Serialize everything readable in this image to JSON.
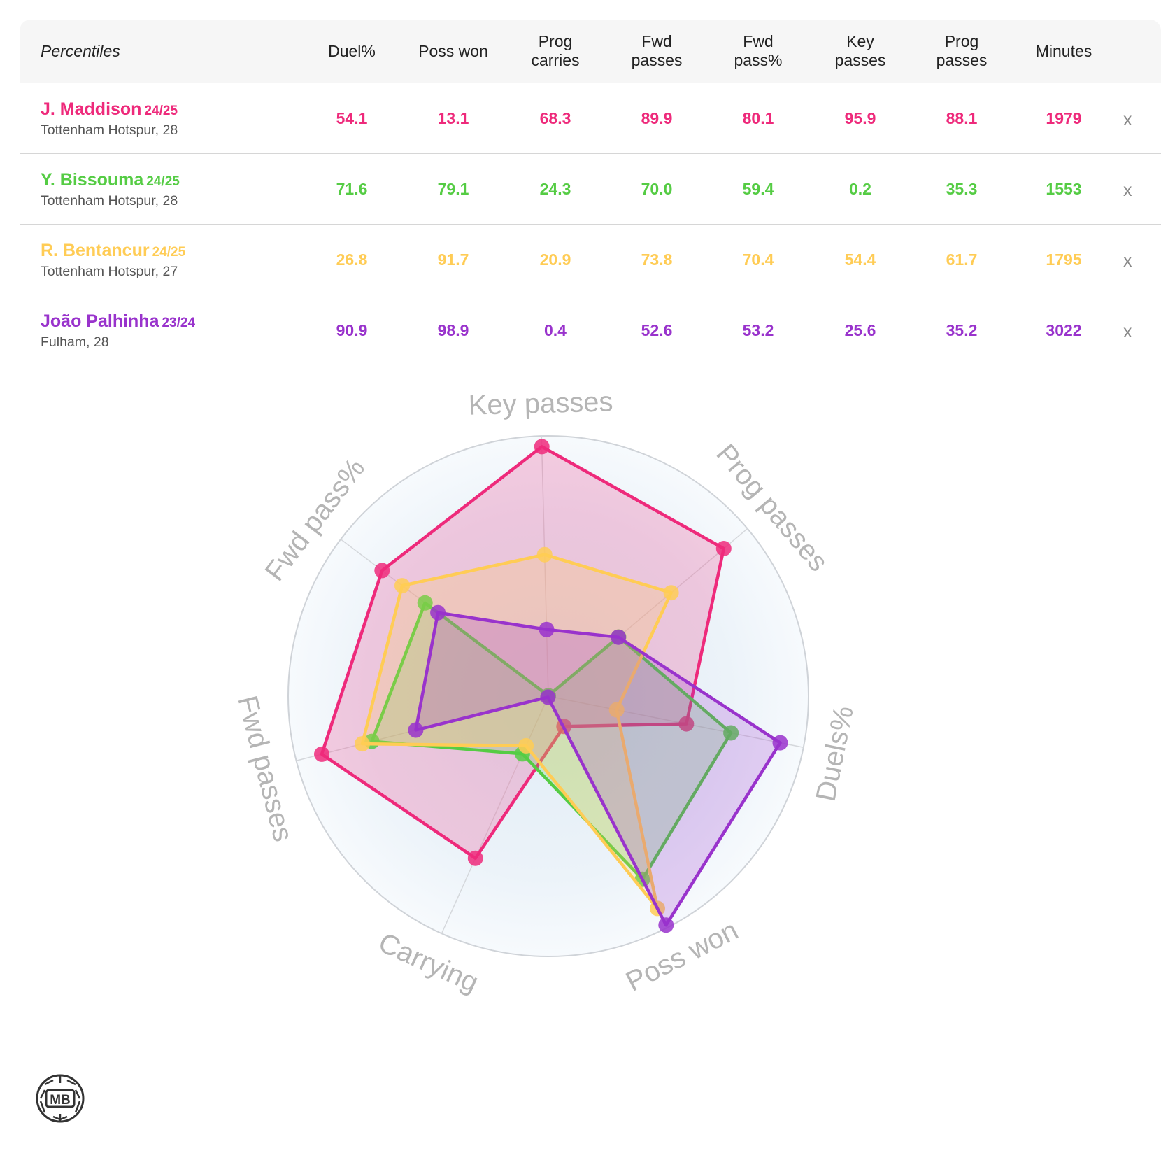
{
  "table": {
    "header_label": "Percentiles",
    "columns": [
      "Duel%",
      "Poss won",
      "Prog\ncarries",
      "Fwd\npasses",
      "Fwd\npass%",
      "Key\npasses",
      "Prog\npasses",
      "Minutes"
    ],
    "remove_label": "x"
  },
  "players": [
    {
      "name": "J. Maddison",
      "season": "24/25",
      "team_age": "Tottenham Hotspur, 28",
      "color": "#ee2a7b",
      "values": [
        "54.1",
        "13.1",
        "68.3",
        "89.9",
        "80.1",
        "95.9",
        "88.1",
        "1979"
      ]
    },
    {
      "name": "Y. Bissouma",
      "season": "24/25",
      "team_age": "Tottenham Hotspur, 28",
      "color": "#55cc44",
      "values": [
        "71.6",
        "79.1",
        "24.3",
        "70.0",
        "59.4",
        "0.2",
        "35.3",
        "1553"
      ]
    },
    {
      "name": "R. Bentancur",
      "season": "24/25",
      "team_age": "Tottenham Hotspur, 27",
      "color": "#ffcc55",
      "values": [
        "26.8",
        "91.7",
        "20.9",
        "73.8",
        "70.4",
        "54.4",
        "61.7",
        "1795"
      ]
    },
    {
      "name": "João Palhinha",
      "season": "23/24",
      "team_age": "Fulham, 28",
      "color": "#9933cc",
      "values": [
        "90.9",
        "98.9",
        "0.4",
        "52.6",
        "53.2",
        "25.6",
        "35.2",
        "3022"
      ]
    }
  ],
  "chart_data": {
    "type": "radar",
    "axes": [
      "Key passes",
      "Prog passes",
      "Duels%",
      "Poss won",
      "Carrying",
      "Fwd passes",
      "Fwd pass%"
    ],
    "range": [
      0,
      100
    ],
    "series": [
      {
        "name": "J. Maddison",
        "color": "#ee2a7b",
        "values": [
          95.9,
          88.1,
          54.1,
          13.1,
          68.3,
          89.9,
          80.1
        ]
      },
      {
        "name": "Y. Bissouma",
        "color": "#55cc44",
        "values": [
          0.2,
          35.3,
          71.6,
          79.1,
          24.3,
          70.0,
          59.4
        ]
      },
      {
        "name": "R. Bentancur",
        "color": "#ffcc55",
        "values": [
          54.4,
          61.7,
          26.8,
          91.7,
          20.9,
          73.8,
          70.4
        ]
      },
      {
        "name": "João Palhinha",
        "color": "#9933cc",
        "values": [
          25.6,
          35.2,
          90.9,
          98.9,
          0.4,
          52.6,
          53.2
        ]
      }
    ]
  },
  "logo": {
    "text": "MB"
  }
}
